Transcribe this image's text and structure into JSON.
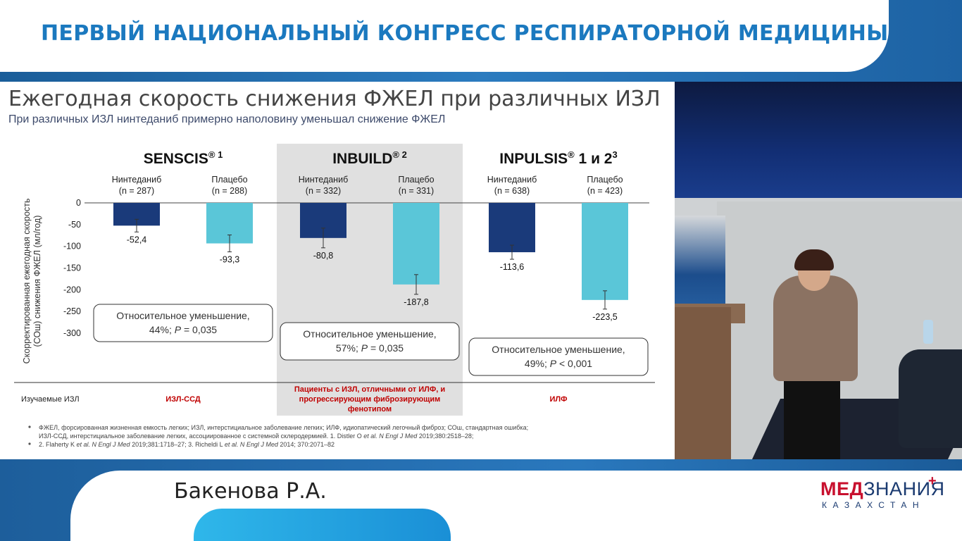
{
  "header": {
    "congress_title": "ПЕРВЫЙ НАЦИОНАЛЬНЫЙ КОНГРЕСС РЕСПИРАТОРНОЙ МЕДИЦИНЫ"
  },
  "slide": {
    "title": "Ежегодная скорость снижения ФЖЕЛ при различных ИЗЛ",
    "subtitle": "При различных ИЗЛ нинтеданиб примерно наполовину уменьшал снижение ФЖЕЛ"
  },
  "chart_data": {
    "type": "bar",
    "ylabel_line1": "Скорректированная ежегодная скорость",
    "ylabel_line2": "(СОш) снижения ФЖЕЛ (мл/год)",
    "ylim": [
      -300,
      0
    ],
    "yticks": [
      "0",
      "-50",
      "-100",
      "-150",
      "-200",
      "-250",
      "-300"
    ],
    "ytick_values": [
      0,
      -50,
      -100,
      -150,
      -200,
      -250,
      -300
    ],
    "colors": {
      "nintedanib": "#1a3a7a",
      "placebo": "#5ac6d8",
      "highlight_bg": "#e0e0e0",
      "red_label": "#c00000"
    },
    "groups": [
      {
        "trial": "SENSCIS",
        "trial_sup": "® 1",
        "highlight": false,
        "bars": [
          {
            "label": "Нинтеданиб",
            "n": "(n = 287)",
            "value": -52.4,
            "value_label": "-52,4",
            "series": "nintedanib",
            "err": 9
          },
          {
            "label": "Плацебо",
            "n": "(n = 288)",
            "value": -93.3,
            "value_label": "-93,3",
            "series": "placebo",
            "err": 12
          }
        ],
        "relative_line1": "Относительное уменьшение,",
        "relative_line2_pct": "44%; ",
        "relative_line2_p": "P",
        "relative_line2_rest": " = 0,035",
        "disease": "ИЗЛ-ССД"
      },
      {
        "trial": "INBUILD",
        "trial_sup": "® 2",
        "highlight": true,
        "bars": [
          {
            "label": "Нинтеданиб",
            "n": "(n = 332)",
            "value": -80.8,
            "value_label": "-80,8",
            "series": "nintedanib",
            "err": 14
          },
          {
            "label": "Плацебо",
            "n": "(n = 331)",
            "value": -187.8,
            "value_label": "-187,8",
            "series": "placebo",
            "err": 14
          }
        ],
        "relative_line1": "Относительное уменьшение,",
        "relative_line2_pct": "57%; ",
        "relative_line2_p": "P",
        "relative_line2_rest": " = 0,035",
        "disease_lines": [
          "Пациенты с ИЗЛ, отличными от ИЛФ, и",
          "прогрессирующим фиброзирующим",
          "фенотипом"
        ]
      },
      {
        "trial": "INPULSIS",
        "trial_sup_r": "®",
        "trial_suffix": " 1 и 2",
        "trial_sup": "3",
        "highlight": false,
        "bars": [
          {
            "label": "Нинтеданиб",
            "n": "(n = 638)",
            "value": -113.6,
            "value_label": "-113,6",
            "series": "nintedanib",
            "err": 10
          },
          {
            "label": "Плацебо",
            "n": "(n = 423)",
            "value": -223.5,
            "value_label": "-223,5",
            "series": "placebo",
            "err": 13
          }
        ],
        "relative_line1": "Относительное уменьшение,",
        "relative_line2_pct": "49%; ",
        "relative_line2_p": "P",
        "relative_line2_rest": " < 0,001",
        "disease": "ИЛФ"
      }
    ],
    "studied_label": "Изучаемые ИЗЛ"
  },
  "footnotes": {
    "bullet1_line1": "ФЖЕЛ, форсированная жизненная емкость легких; ИЗЛ, интерстициальное заболевание легких; ИЛФ, идиопатический легочный фиброз; СОш, стандартная ошибка;",
    "bullet1_line2_a": "ИЗЛ-ССД, интерстициальное заболевание легких, ассоциированное с системной склеродермией. 1. Distler O ",
    "bullet1_line2_b": "et al. N Engl J Med",
    "bullet1_line2_c": " 2019;380:2518–28;",
    "bullet2_a": "2. Flaherty K ",
    "bullet2_b": "et al. N Engl J Med",
    "bullet2_c": " 2019;381:1718–27; 3. Richeldi L ",
    "bullet2_d": "et al. N Engl J Med",
    "bullet2_e": " 2014; 370:2071–82"
  },
  "footer": {
    "speaker": "Бакенова Р.А.",
    "logo_red": "МЕД",
    "logo_rest": "ЗНАНИЯ",
    "logo_plus": "+",
    "logo_sub": "КАЗАХСТАН"
  }
}
